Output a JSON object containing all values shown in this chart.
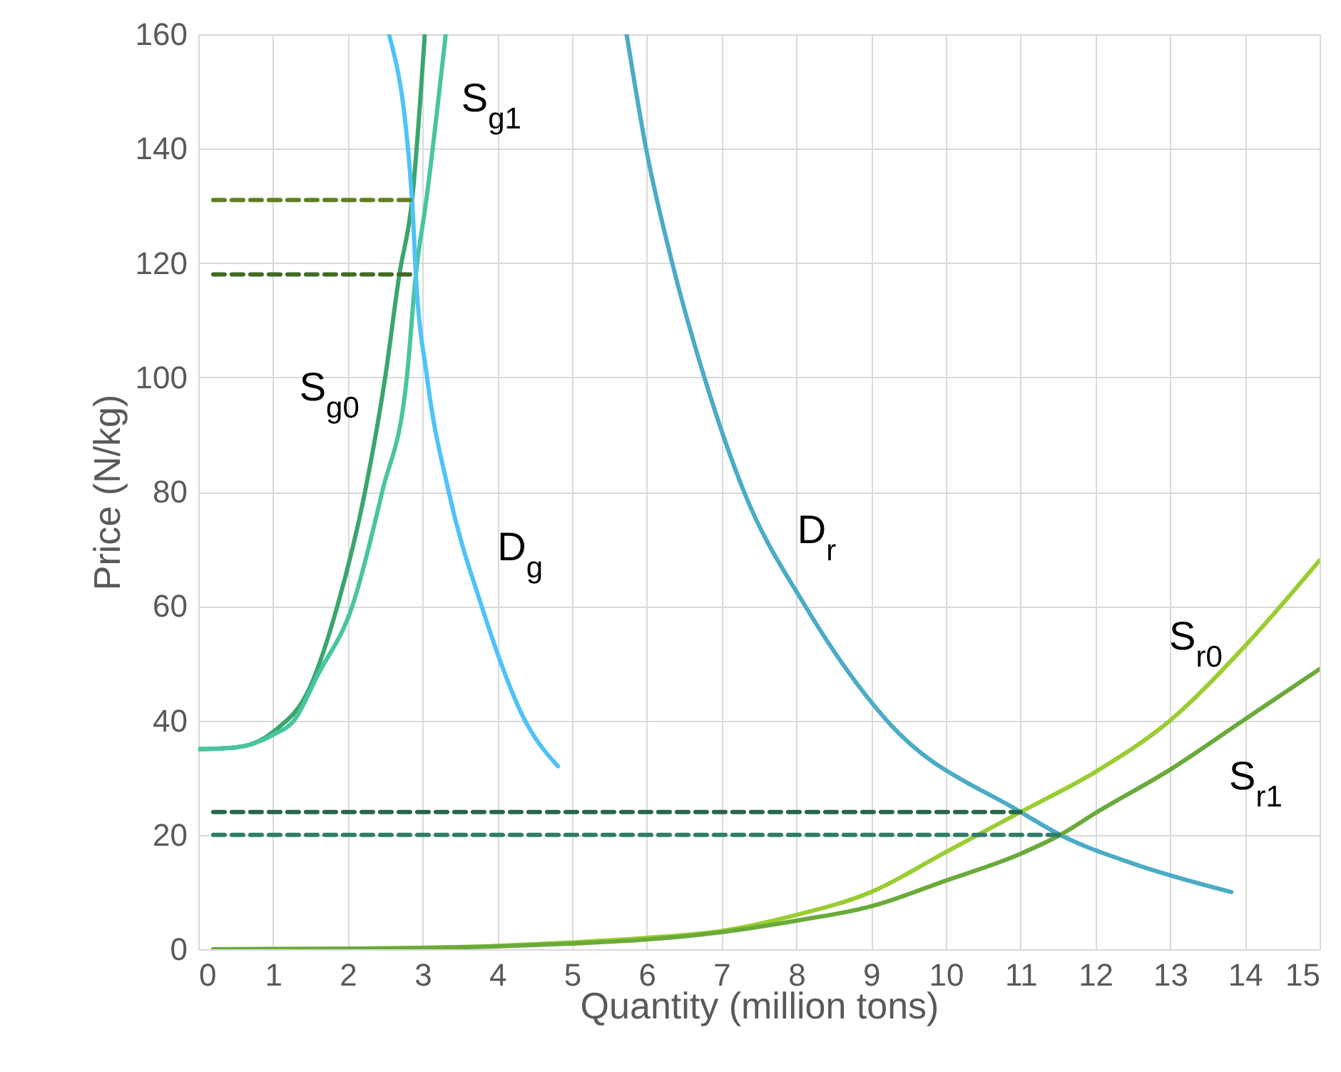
{
  "chart_data": {
    "type": "line",
    "xlabel": "Quantity (million tons)",
    "ylabel": "Price (N/kg)",
    "xlim": [
      0,
      15
    ],
    "ylim": [
      0,
      160
    ],
    "xticks": [
      0,
      1,
      2,
      3,
      4,
      5,
      6,
      7,
      8,
      9,
      10,
      11,
      12,
      13,
      14,
      15
    ],
    "yticks": [
      0,
      20,
      40,
      60,
      80,
      100,
      120,
      140,
      160
    ],
    "grid": true,
    "series": [
      {
        "name": "S$_{g0}$",
        "color": "#3aa66c",
        "x": [
          0,
          0.5,
          1,
          1.5,
          1.86,
          2.23,
          2.5,
          2.69,
          2.86,
          3.03
        ],
        "values": [
          35,
          35.3,
          38,
          46,
          60,
          80,
          100,
          118,
          131,
          160
        ]
      },
      {
        "name": "S$_{g1}$",
        "color": "#48c5a0",
        "x": [
          0,
          0.5,
          1,
          1.28,
          1.6,
          2.06,
          2.46,
          2.79,
          2.91,
          3.05,
          3.31
        ],
        "values": [
          35,
          35.3,
          37.5,
          40,
          48,
          60,
          80,
          100,
          118,
          131,
          160
        ]
      },
      {
        "name": "D$_{g}$",
        "color": "#4fc3f7",
        "x": [
          2.55,
          2.86,
          2.91,
          3.06,
          3.35,
          3.79,
          4.37,
          4.81
        ],
        "values": [
          160,
          131,
          118,
          100,
          80,
          60,
          40,
          32
        ]
      },
      {
        "name": "D$_{r}$",
        "color": "#4bacc6",
        "x": [
          5.73,
          5.99,
          6.34,
          6.77,
          7.3,
          8.12,
          9.21,
          11,
          11.53,
          12.5,
          13.82
        ],
        "values": [
          160,
          140,
          120,
          100,
          80,
          60,
          40,
          24,
          20,
          15,
          10
        ]
      },
      {
        "name": "S$_{r0}$",
        "color": "#9acd32",
        "x": [
          0.2,
          2,
          4,
          5,
          6,
          7,
          8,
          9,
          10,
          11,
          12,
          13,
          14,
          15
        ],
        "values": [
          0,
          0.1,
          0.6,
          1.2,
          2,
          3.2,
          6,
          10,
          17,
          24,
          31,
          40,
          53,
          68
        ]
      },
      {
        "name": "S$_{r1}$",
        "color": "#6aaa3a",
        "x": [
          0.2,
          2,
          4,
          5,
          6,
          7,
          8,
          9,
          10,
          11,
          11.53,
          12,
          13,
          14,
          15
        ],
        "values": [
          0,
          0.1,
          0.5,
          1,
          1.7,
          3,
          5,
          7.5,
          12,
          16.7,
          20,
          23.8,
          31.4,
          40.2,
          49
        ]
      },
      {
        "color": "#5f7f1f",
        "line_style": "dashed",
        "x": [
          0.2,
          2.86
        ],
        "values": [
          131,
          131
        ]
      },
      {
        "color": "#3f6b22",
        "line_style": "dashed",
        "x": [
          0.2,
          2.91
        ],
        "values": [
          118,
          118
        ]
      },
      {
        "color": "#26664a",
        "line_style": "dashed",
        "x": [
          0.2,
          11
        ],
        "values": [
          24,
          24
        ]
      },
      {
        "color": "#2e7d6a",
        "line_style": "dashed",
        "x": [
          0.2,
          11.53
        ],
        "values": [
          20,
          20
        ]
      }
    ]
  }
}
